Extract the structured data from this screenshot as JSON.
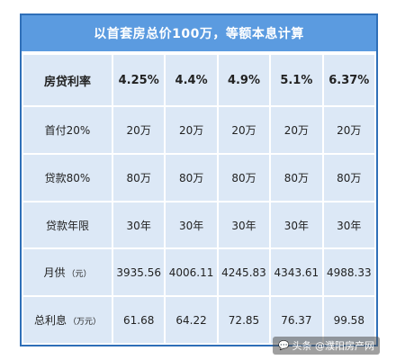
{
  "title": "以首套房总价100万，等额本息计算",
  "rows": [
    {
      "label": "房贷利率",
      "unit": "",
      "values": [
        "4.25%",
        "4.4%",
        "4.9%",
        "5.1%",
        "6.37%"
      ]
    },
    {
      "label": "首付20%",
      "unit": "",
      "values": [
        "20万",
        "20万",
        "20万",
        "20万",
        "20万"
      ]
    },
    {
      "label": "贷款80%",
      "unit": "",
      "values": [
        "80万",
        "80万",
        "80万",
        "80万",
        "80万"
      ]
    },
    {
      "label": "贷款年限",
      "unit": "",
      "values": [
        "30年",
        "30年",
        "30年",
        "30年",
        "30年"
      ]
    },
    {
      "label": "月供",
      "unit": "（元）",
      "values": [
        "3935.56",
        "4006.11",
        "4245.83",
        "4343.61",
        "4988.33"
      ]
    },
    {
      "label": "总利息",
      "unit": "（万元）",
      "values": [
        "61.68",
        "64.22",
        "72.85",
        "76.37",
        "99.58"
      ]
    }
  ],
  "watermark": "头条 @濮阳房产网",
  "icons": {
    "watermark_icon": "speech-bubble-icon"
  }
}
